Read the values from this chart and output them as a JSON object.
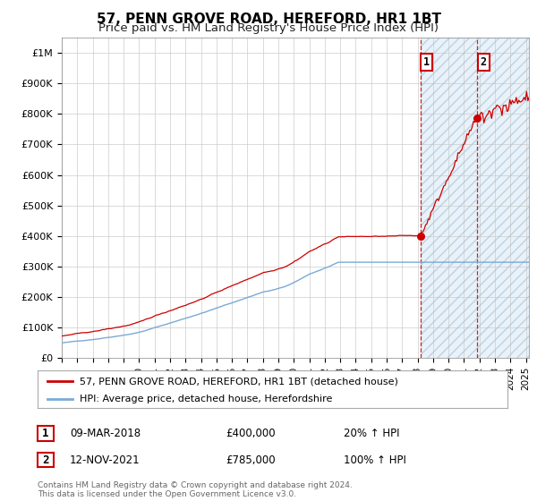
{
  "title": "57, PENN GROVE ROAD, HEREFORD, HR1 1BT",
  "subtitle": "Price paid vs. HM Land Registry's House Price Index (HPI)",
  "ylabel_ticks": [
    "£0",
    "£100K",
    "£200K",
    "£300K",
    "£400K",
    "£500K",
    "£600K",
    "£700K",
    "£800K",
    "£900K",
    "£1M"
  ],
  "ytick_values": [
    0,
    100000,
    200000,
    300000,
    400000,
    500000,
    600000,
    700000,
    800000,
    900000,
    1000000
  ],
  "ylim": [
    0,
    1050000
  ],
  "xlim_start": 1995.0,
  "xlim_end": 2025.2,
  "hpi_line_color": "#7aaad4",
  "price_line_color": "#cc0000",
  "sale1_date": 2018.19,
  "sale1_price": 400000,
  "sale2_date": 2021.87,
  "sale2_price": 785000,
  "dashed_vline_date1": 2018.19,
  "dashed_vline_date2": 2021.87,
  "shade_start": 2018.19,
  "shade_end": 2025.2,
  "legend_line1": "57, PENN GROVE ROAD, HEREFORD, HR1 1BT (detached house)",
  "legend_line2": "HPI: Average price, detached house, Herefordshire",
  "label1_num": "1",
  "label1_date": "09-MAR-2018",
  "label1_price": "£400,000",
  "label1_pct": "20% ↑ HPI",
  "label2_num": "2",
  "label2_date": "12-NOV-2021",
  "label2_price": "£785,000",
  "label2_pct": "100% ↑ HPI",
  "footnote": "Contains HM Land Registry data © Crown copyright and database right 2024.\nThis data is licensed under the Open Government Licence v3.0.",
  "bg_color": "#ffffff",
  "grid_color": "#cccccc",
  "shade_color": "#d8e8f4",
  "title_fontsize": 11,
  "subtitle_fontsize": 9.5,
  "tick_fontsize": 8,
  "legend_fontsize": 8,
  "annotation_fontsize": 8.5
}
